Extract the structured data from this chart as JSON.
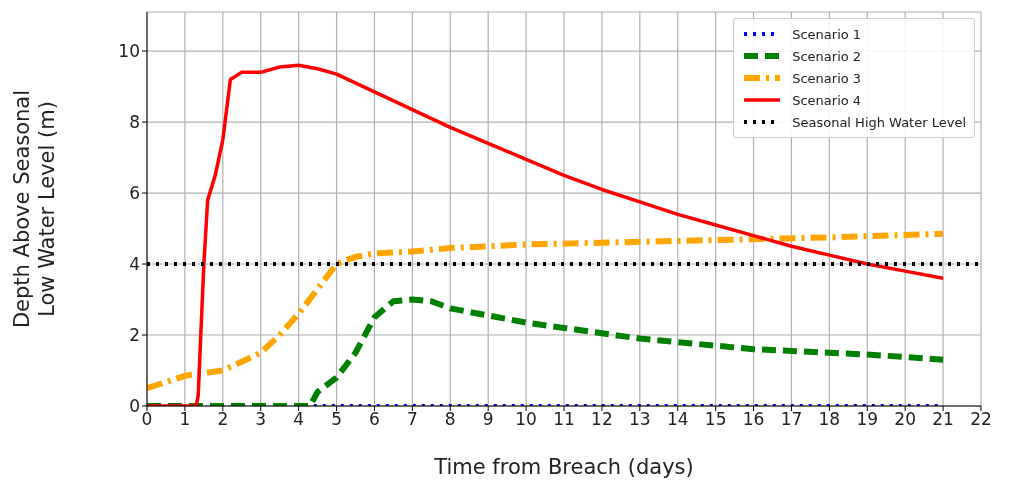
{
  "chart_data": {
    "type": "line",
    "xlabel": "Time from Breach (days)",
    "ylabel": "Depth Above Seasonal\nLow Water Level (m)",
    "xlim": [
      0,
      22
    ],
    "xticks": [
      0,
      1,
      2,
      3,
      4,
      5,
      6,
      7,
      8,
      9,
      10,
      11,
      12,
      13,
      14,
      15,
      16,
      17,
      18,
      19,
      20,
      21,
      22
    ],
    "ylim": [
      0,
      11.1
    ],
    "yticks": [
      0,
      2,
      4,
      6,
      8,
      10
    ],
    "grid": true,
    "legend": "top right",
    "marker": "none",
    "series": [
      {
        "name": "Scenario 1",
        "color": "#0000ff",
        "line_style": "dotted",
        "x": [
          4.4,
          5,
          6,
          7,
          8,
          9,
          10,
          11,
          12,
          13,
          14,
          15,
          16,
          17,
          18,
          19,
          20,
          21
        ],
        "values": [
          0,
          0,
          0,
          0,
          0,
          0,
          0,
          0,
          0,
          0,
          0,
          0,
          0,
          0,
          0,
          0,
          0,
          0
        ]
      },
      {
        "name": "Scenario 2",
        "color": "#008000",
        "line_style": "dashed",
        "x": [
          0,
          1,
          2,
          3,
          4,
          4.3,
          4.5,
          5,
          5.5,
          6,
          6.5,
          7,
          7.5,
          8,
          9,
          10,
          11,
          12,
          13,
          14,
          15,
          16,
          17,
          18,
          19,
          20,
          21
        ],
        "values": [
          0,
          0,
          0,
          0,
          0,
          0,
          0.4,
          0.8,
          1.5,
          2.5,
          2.95,
          3.0,
          2.95,
          2.75,
          2.55,
          2.35,
          2.2,
          2.05,
          1.9,
          1.8,
          1.7,
          1.6,
          1.55,
          1.5,
          1.45,
          1.38,
          1.3
        ]
      },
      {
        "name": "Scenario 3",
        "color": "#ffa500",
        "line_style": "dashdot",
        "x": [
          0,
          1,
          2,
          3,
          3.5,
          4,
          4.5,
          5,
          5.5,
          6,
          7,
          8,
          9,
          10,
          12,
          14,
          16,
          18,
          21
        ],
        "values": [
          0.5,
          0.85,
          1.0,
          1.5,
          2.0,
          2.6,
          3.3,
          4.0,
          4.2,
          4.3,
          4.35,
          4.45,
          4.5,
          4.55,
          4.6,
          4.65,
          4.7,
          4.75,
          4.85
        ]
      },
      {
        "name": "Scenario 4",
        "color": "#ff0000",
        "line_style": "solid",
        "x": [
          0,
          1,
          1.3,
          1.35,
          1.5,
          1.6,
          1.8,
          2.0,
          2.2,
          2.5,
          3,
          3.5,
          4,
          4.5,
          5,
          6,
          7,
          8,
          9,
          10,
          11,
          12,
          13,
          14,
          15,
          16,
          17,
          18,
          19,
          20,
          21
        ],
        "values": [
          0,
          0,
          0,
          0.3,
          4,
          5.8,
          6.5,
          7.5,
          9.2,
          9.4,
          9.4,
          9.55,
          9.6,
          9.5,
          9.35,
          8.85,
          8.35,
          7.85,
          7.4,
          6.95,
          6.5,
          6.1,
          5.75,
          5.4,
          5.1,
          4.8,
          4.5,
          4.25,
          4.0,
          3.8,
          3.6
        ]
      },
      {
        "name": "Seasonal High Water Level",
        "color": "#000000",
        "line_style": "dotted",
        "x": [
          0,
          22
        ],
        "values": [
          4,
          4
        ]
      }
    ]
  }
}
